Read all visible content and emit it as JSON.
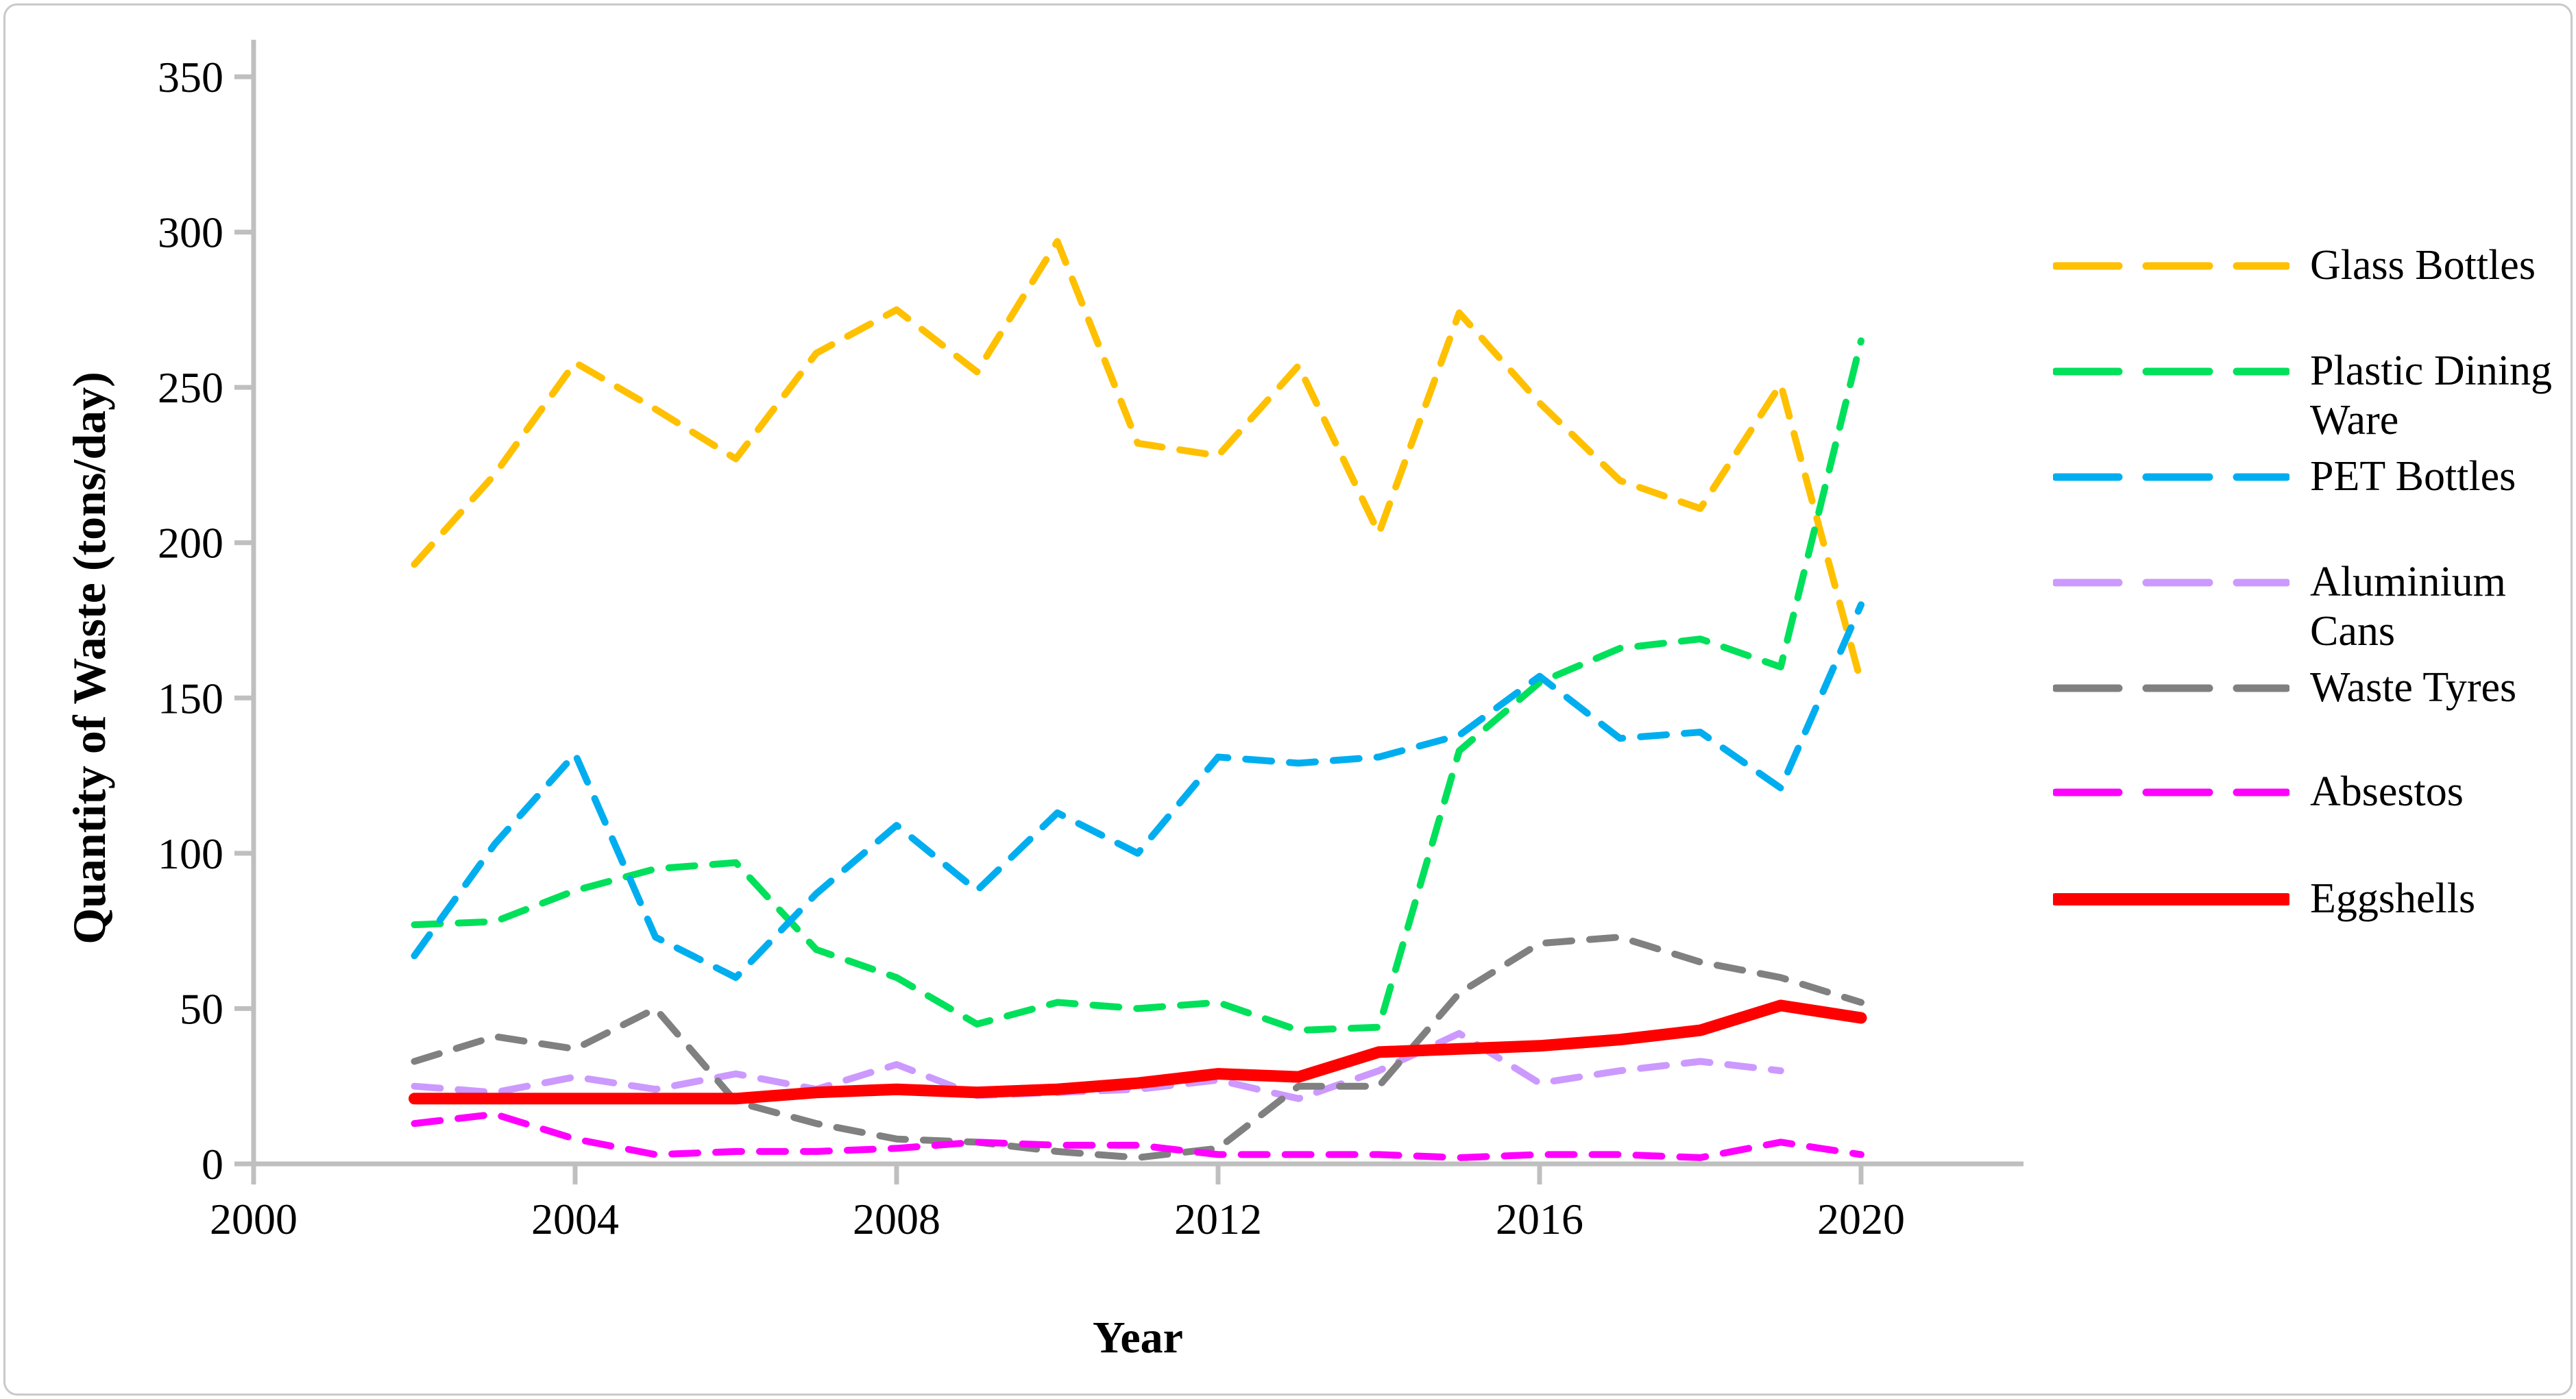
{
  "chart_data": {
    "type": "line",
    "title": "",
    "xlabel": "Year",
    "ylabel": "Quantity of Waste (tons/day)",
    "x": [
      2002,
      2003,
      2004,
      2005,
      2006,
      2007,
      2008,
      2009,
      2010,
      2011,
      2012,
      2013,
      2014,
      2015,
      2016,
      2017,
      2018,
      2019,
      2020
    ],
    "xlim": [
      2000,
      2022
    ],
    "ylim": [
      0,
      350
    ],
    "xticks": [
      2000,
      2004,
      2008,
      2012,
      2016,
      2020
    ],
    "yticks": [
      0,
      50,
      100,
      150,
      200,
      250,
      300,
      350
    ],
    "grid": false,
    "legend_position": "right",
    "axis_color": "#bfbfbf",
    "text_color": "#000000",
    "series": [
      {
        "name": "Glass Bottles",
        "color": "#FFC000",
        "style": "dashed",
        "values": [
          193,
          222,
          258,
          243,
          227,
          261,
          275,
          255,
          297,
          232,
          228,
          257,
          203,
          274,
          245,
          220,
          211,
          251,
          155
        ]
      },
      {
        "name": "Plastic Dining Ware",
        "color": "#00E05A",
        "style": "dashed",
        "values": [
          77,
          78,
          88,
          95,
          97,
          69,
          60,
          45,
          52,
          50,
          52,
          43,
          44,
          133,
          155,
          166,
          169,
          160,
          265
        ]
      },
      {
        "name": "PET Bottles",
        "color": "#00AEEF",
        "style": "dashed",
        "values": [
          67,
          103,
          132,
          73,
          60,
          87,
          109,
          88,
          113,
          100,
          131,
          129,
          131,
          138,
          157,
          137,
          139,
          121,
          180
        ]
      },
      {
        "name": "Aluminium Cans",
        "color": "#CC99FF",
        "style": "dashed",
        "values": [
          25,
          23,
          28,
          24,
          29,
          24,
          32,
          22,
          23,
          24,
          27,
          21,
          30,
          42,
          26,
          30,
          33,
          30,
          null
        ]
      },
      {
        "name": "Waste Tyres",
        "color": "#808080",
        "style": "dashed",
        "values": [
          33,
          41,
          37,
          50,
          20,
          13,
          8,
          7,
          4,
          2,
          5,
          25,
          25,
          55,
          71,
          73,
          65,
          60,
          52
        ]
      },
      {
        "name": "Absestos",
        "color": "#FF00FF",
        "style": "dashed",
        "values": [
          13,
          16,
          8,
          3,
          4,
          4,
          5,
          7,
          6,
          6,
          3,
          3,
          3,
          2,
          3,
          3,
          2,
          7,
          3
        ]
      },
      {
        "name": "Eggshells",
        "color": "#FF0000",
        "style": "solid",
        "values": [
          21,
          21,
          21,
          21,
          21,
          23,
          24,
          23,
          24,
          26,
          29,
          28,
          36,
          37,
          38,
          40,
          43,
          51,
          47
        ]
      }
    ]
  }
}
